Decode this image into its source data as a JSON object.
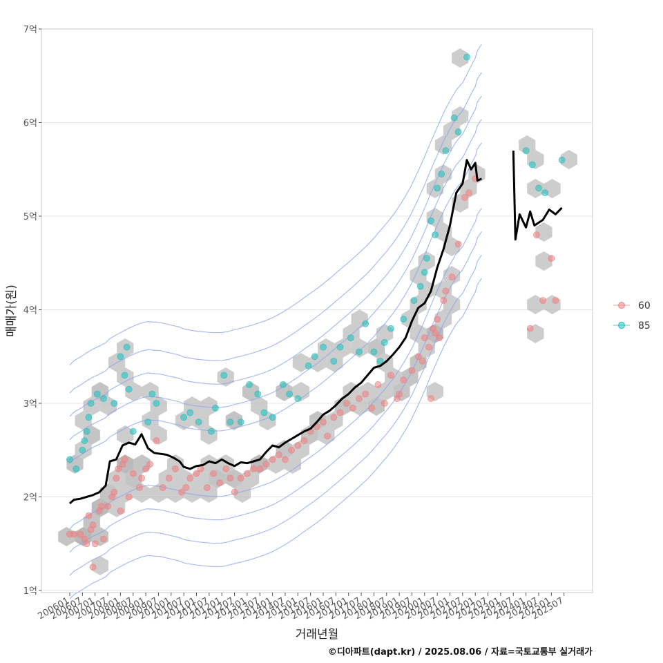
{
  "chart_data": {
    "type": "scatter",
    "xlabel": "거래년월",
    "ylabel": "매매가(원)",
    "caption": "©디아파트(dapt.kr) / 2025.08.06 / 자료=국토교통부 실거래가",
    "ylim": [
      1,
      7
    ],
    "y_ticks": [
      {
        "value": 1,
        "label": "1억"
      },
      {
        "value": 2,
        "label": "2억"
      },
      {
        "value": 3,
        "label": "3억"
      },
      {
        "value": 4,
        "label": "4억"
      },
      {
        "value": 5,
        "label": "5억"
      },
      {
        "value": 6,
        "label": "6억"
      },
      {
        "value": 7,
        "label": "7억"
      }
    ],
    "x_ticks": [
      "200601",
      "200607",
      "200701",
      "200707",
      "200801",
      "200807",
      "200901",
      "200907",
      "201001",
      "201007",
      "201101",
      "201107",
      "201201",
      "201207",
      "201301",
      "201307",
      "201401",
      "201407",
      "201501",
      "201507",
      "201601",
      "201607",
      "201701",
      "201707",
      "201801",
      "201807",
      "201901",
      "201907",
      "202001",
      "202007",
      "202101",
      "202107",
      "202201",
      "202207",
      "202301",
      "202307",
      "202401",
      "202407",
      "202501",
      "202507"
    ],
    "legend": {
      "position": "right",
      "entries": [
        {
          "label": "60",
          "color": "#f08080"
        },
        {
          "label": "85",
          "color": "#20c0c0"
        }
      ]
    },
    "grid": true,
    "colors": {
      "s60": "#f08080",
      "s85": "#20c0c0",
      "line": "#000000",
      "hex": "#b4b4b4",
      "hex_light": "#c4d2e4",
      "contour": "#8aa4ec",
      "grid": "#e5e5e5"
    },
    "series": [
      {
        "name": "60",
        "points": [
          [
            "2006-01",
            1.6
          ],
          [
            "2006-03",
            1.6
          ],
          [
            "2006-06",
            1.6
          ],
          [
            "2006-08",
            1.55
          ],
          [
            "2006-09",
            1.5
          ],
          [
            "2006-10",
            1.8
          ],
          [
            "2006-11",
            1.65
          ],
          [
            "2006-12",
            1.7
          ],
          [
            "2006-12",
            1.25
          ],
          [
            "2007-01",
            1.5
          ],
          [
            "2007-03",
            1.85
          ],
          [
            "2007-04",
            1.9
          ],
          [
            "2007-05",
            1.55
          ],
          [
            "2007-07",
            1.9
          ],
          [
            "2007-09",
            2.0
          ],
          [
            "2007-10",
            2.05
          ],
          [
            "2007-11",
            2.2
          ],
          [
            "2007-12",
            2.3
          ],
          [
            "2008-01",
            1.85
          ],
          [
            "2008-02",
            2.35
          ],
          [
            "2008-03",
            2.4
          ],
          [
            "2008-05",
            2.0
          ],
          [
            "2008-07",
            2.25
          ],
          [
            "2008-10",
            2.1
          ],
          [
            "2008-11",
            2.2
          ],
          [
            "2009-01",
            2.3
          ],
          [
            "2009-03",
            2.35
          ],
          [
            "2009-06",
            2.6
          ],
          [
            "2009-09",
            2.1
          ],
          [
            "2009-12",
            2.2
          ],
          [
            "2010-03",
            2.3
          ],
          [
            "2010-06",
            2.05
          ],
          [
            "2010-08",
            2.1
          ],
          [
            "2010-10",
            2.2
          ],
          [
            "2011-01",
            2.25
          ],
          [
            "2011-03",
            2.3
          ],
          [
            "2011-06",
            2.1
          ],
          [
            "2011-09",
            2.25
          ],
          [
            "2011-12",
            2.15
          ],
          [
            "2012-03",
            2.3
          ],
          [
            "2012-05",
            2.2
          ],
          [
            "2012-07",
            2.05
          ],
          [
            "2012-10",
            2.2
          ],
          [
            "2013-01",
            2.25
          ],
          [
            "2013-04",
            2.3
          ],
          [
            "2013-07",
            2.3
          ],
          [
            "2013-10",
            2.35
          ],
          [
            "2014-01",
            2.4
          ],
          [
            "2014-04",
            2.45
          ],
          [
            "2014-07",
            2.4
          ],
          [
            "2014-10",
            2.5
          ],
          [
            "2015-01",
            2.55
          ],
          [
            "2015-04",
            2.6
          ],
          [
            "2015-07",
            2.7
          ],
          [
            "2015-10",
            2.75
          ],
          [
            "2016-01",
            2.8
          ],
          [
            "2016-03",
            2.65
          ],
          [
            "2016-06",
            2.85
          ],
          [
            "2016-09",
            2.9
          ],
          [
            "2016-12",
            3.0
          ],
          [
            "2017-03",
            2.95
          ],
          [
            "2017-06",
            3.05
          ],
          [
            "2017-09",
            3.1
          ],
          [
            "2017-12",
            2.95
          ],
          [
            "2018-03",
            3.2
          ],
          [
            "2018-06",
            3.0
          ],
          [
            "2018-09",
            3.3
          ],
          [
            "2018-12",
            3.05
          ],
          [
            "2019-01",
            3.1
          ],
          [
            "2019-03",
            3.25
          ],
          [
            "2019-07",
            3.35
          ],
          [
            "2019-10",
            3.5
          ],
          [
            "2019-12",
            3.45
          ],
          [
            "2020-01",
            3.7
          ],
          [
            "2020-03",
            3.6
          ],
          [
            "2020-04",
            3.05
          ],
          [
            "2020-05",
            3.8
          ],
          [
            "2020-06",
            3.75
          ],
          [
            "2020-07",
            3.9
          ],
          [
            "2020-08",
            3.7
          ],
          [
            "2020-10",
            4.1
          ],
          [
            "2020-11",
            4.2
          ],
          [
            "2021-02",
            4.35
          ],
          [
            "2021-05",
            4.7
          ],
          [
            "2021-08",
            5.2
          ],
          [
            "2021-10",
            5.25
          ],
          [
            "2022-01",
            5.4
          ],
          [
            "2024-03",
            3.8
          ],
          [
            "2024-06",
            4.8
          ],
          [
            "2024-09",
            4.1
          ],
          [
            "2025-01",
            4.55
          ],
          [
            "2025-03",
            4.1
          ]
        ]
      },
      {
        "name": "85",
        "points": [
          [
            "2006-01",
            2.4
          ],
          [
            "2006-04",
            2.3
          ],
          [
            "2006-07",
            2.5
          ],
          [
            "2006-08",
            2.6
          ],
          [
            "2006-09",
            2.7
          ],
          [
            "2006-10",
            2.85
          ],
          [
            "2006-11",
            3.0
          ],
          [
            "2007-02",
            3.1
          ],
          [
            "2007-05",
            3.05
          ],
          [
            "2007-10",
            3.0
          ],
          [
            "2008-01",
            3.5
          ],
          [
            "2008-03",
            3.3
          ],
          [
            "2008-04",
            3.6
          ],
          [
            "2008-05",
            3.15
          ],
          [
            "2008-07",
            2.7
          ],
          [
            "2009-02",
            2.8
          ],
          [
            "2009-04",
            3.1
          ],
          [
            "2009-06",
            3.0
          ],
          [
            "2010-07",
            2.85
          ],
          [
            "2010-10",
            2.9
          ],
          [
            "2011-02",
            2.8
          ],
          [
            "2011-08",
            2.7
          ],
          [
            "2011-10",
            2.95
          ],
          [
            "2012-02",
            3.3
          ],
          [
            "2012-05",
            2.8
          ],
          [
            "2012-10",
            2.8
          ],
          [
            "2013-02",
            3.2
          ],
          [
            "2013-06",
            3.1
          ],
          [
            "2013-09",
            2.9
          ],
          [
            "2014-01",
            2.85
          ],
          [
            "2014-06",
            3.2
          ],
          [
            "2014-09",
            3.1
          ],
          [
            "2015-01",
            3.05
          ],
          [
            "2015-06",
            3.4
          ],
          [
            "2015-09",
            3.5
          ],
          [
            "2016-01",
            3.6
          ],
          [
            "2016-06",
            3.45
          ],
          [
            "2016-09",
            3.6
          ],
          [
            "2017-02",
            3.7
          ],
          [
            "2017-06",
            3.55
          ],
          [
            "2017-09",
            3.85
          ],
          [
            "2018-01",
            3.55
          ],
          [
            "2018-04",
            3.45
          ],
          [
            "2018-06",
            3.65
          ],
          [
            "2018-09",
            3.8
          ],
          [
            "2019-03",
            3.9
          ],
          [
            "2019-08",
            4.1
          ],
          [
            "2019-11",
            4.25
          ],
          [
            "2020-01",
            4.4
          ],
          [
            "2020-02",
            4.55
          ],
          [
            "2020-04",
            4.95
          ],
          [
            "2020-06",
            4.8
          ],
          [
            "2020-07",
            5.3
          ],
          [
            "2020-09",
            5.45
          ],
          [
            "2020-11",
            5.7
          ],
          [
            "2021-03",
            6.05
          ],
          [
            "2021-05",
            5.9
          ],
          [
            "2021-09",
            6.7
          ],
          [
            "2024-01",
            5.7
          ],
          [
            "2024-04",
            5.55
          ],
          [
            "2024-07",
            5.3
          ],
          [
            "2024-10",
            5.25
          ],
          [
            "2025-06",
            5.6
          ]
        ]
      },
      {
        "name": "",
        "kind": "trend_line",
        "points": [
          [
            "2006-01",
            1.93
          ],
          [
            "2006-03",
            1.97
          ],
          [
            "2006-06",
            1.98
          ],
          [
            "2006-09",
            2.0
          ],
          [
            "2006-12",
            2.02
          ],
          [
            "2007-03",
            2.05
          ],
          [
            "2007-06",
            2.12
          ],
          [
            "2007-08",
            2.38
          ],
          [
            "2007-11",
            2.4
          ],
          [
            "2008-02",
            2.55
          ],
          [
            "2008-05",
            2.58
          ],
          [
            "2008-08",
            2.56
          ],
          [
            "2008-11",
            2.67
          ],
          [
            "2009-02",
            2.52
          ],
          [
            "2009-05",
            2.47
          ],
          [
            "2009-08",
            2.46
          ],
          [
            "2009-11",
            2.45
          ],
          [
            "2010-02",
            2.42
          ],
          [
            "2010-05",
            2.38
          ],
          [
            "2010-07",
            2.32
          ],
          [
            "2010-10",
            2.3
          ],
          [
            "2011-01",
            2.33
          ],
          [
            "2011-04",
            2.34
          ],
          [
            "2011-07",
            2.38
          ],
          [
            "2011-10",
            2.36
          ],
          [
            "2012-01",
            2.4
          ],
          [
            "2012-04",
            2.36
          ],
          [
            "2012-07",
            2.33
          ],
          [
            "2012-10",
            2.37
          ],
          [
            "2013-01",
            2.36
          ],
          [
            "2013-04",
            2.38
          ],
          [
            "2013-07",
            2.4
          ],
          [
            "2013-10",
            2.48
          ],
          [
            "2014-01",
            2.55
          ],
          [
            "2014-04",
            2.53
          ],
          [
            "2014-07",
            2.58
          ],
          [
            "2014-10",
            2.62
          ],
          [
            "2015-01",
            2.66
          ],
          [
            "2015-04",
            2.7
          ],
          [
            "2015-07",
            2.73
          ],
          [
            "2015-10",
            2.8
          ],
          [
            "2016-01",
            2.88
          ],
          [
            "2016-04",
            2.92
          ],
          [
            "2016-07",
            2.98
          ],
          [
            "2016-10",
            3.05
          ],
          [
            "2017-01",
            3.1
          ],
          [
            "2017-04",
            3.17
          ],
          [
            "2017-07",
            3.22
          ],
          [
            "2017-10",
            3.3
          ],
          [
            "2018-01",
            3.38
          ],
          [
            "2018-04",
            3.4
          ],
          [
            "2018-07",
            3.45
          ],
          [
            "2018-10",
            3.52
          ],
          [
            "2019-01",
            3.6
          ],
          [
            "2019-04",
            3.7
          ],
          [
            "2019-07",
            3.88
          ],
          [
            "2019-10",
            4.02
          ],
          [
            "2020-01",
            4.07
          ],
          [
            "2020-04",
            4.2
          ],
          [
            "2020-07",
            4.45
          ],
          [
            "2020-10",
            4.65
          ],
          [
            "2021-01",
            4.9
          ],
          [
            "2021-04",
            5.25
          ],
          [
            "2021-07",
            5.35
          ],
          [
            "2021-09",
            5.6
          ],
          [
            "2021-11",
            5.5
          ],
          [
            "2022-01",
            5.57
          ],
          [
            "2022-02",
            5.38
          ],
          [
            "2022-04",
            5.4
          ],
          [
            "2023-07",
            5.7
          ],
          [
            "2023-08",
            4.75
          ],
          [
            "2023-10",
            5.02
          ],
          [
            "2024-01",
            4.88
          ],
          [
            "2024-03",
            5.05
          ],
          [
            "2024-05",
            4.9
          ],
          [
            "2024-09",
            4.96
          ],
          [
            "2024-12",
            5.07
          ],
          [
            "2025-03",
            5.02
          ],
          [
            "2025-06",
            5.09
          ]
        ]
      }
    ]
  }
}
